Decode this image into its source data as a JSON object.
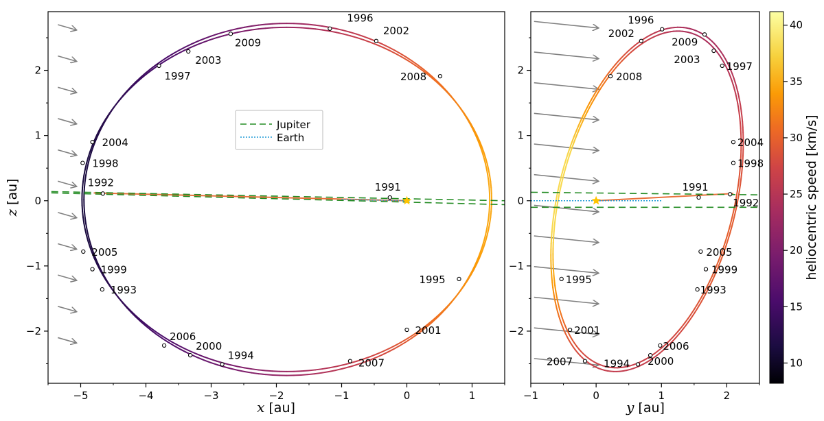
{
  "chart_data": {
    "type": "line",
    "description_title": "",
    "colorbar": {
      "label": "heliocentric speed [km/s]",
      "range": [
        8.2,
        41.2
      ],
      "ticks": [
        10,
        15,
        20,
        25,
        30,
        35,
        40
      ],
      "colormap": "inferno"
    },
    "legend": {
      "position": "center-top",
      "entries": [
        {
          "name": "Jupiter",
          "style": "dashed",
          "color": "#228b22"
        },
        {
          "name": "Earth",
          "style": "dotted",
          "color": "#1f9ad6"
        }
      ]
    },
    "panels": [
      {
        "name": "xz",
        "xlabel_var": "x",
        "xlabel_unit": " [au]",
        "ylabel_var": "z",
        "ylabel_unit": " [au]",
        "xlim": [
          -5.5,
          1.5
        ],
        "ylim": [
          -2.8,
          2.9
        ],
        "xticks": [
          -5,
          -4,
          -3,
          -2,
          -1,
          0,
          1
        ],
        "yticks": [
          -2,
          -1,
          0,
          1,
          2
        ],
        "xtick_labels": [
          "−5",
          "−4",
          "−3",
          "−2",
          "−1",
          "0",
          "1"
        ],
        "ytick_labels": [
          "−2",
          "−1",
          "0",
          "1",
          "2"
        ],
        "flow_arrows": [
          {
            "x": -5.35,
            "y": 2.7,
            "dx": 0.28,
            "dy": -0.08
          },
          {
            "x": -5.35,
            "y": 2.22,
            "dx": 0.28,
            "dy": -0.08
          },
          {
            "x": -5.35,
            "y": 1.74,
            "dx": 0.28,
            "dy": -0.08
          },
          {
            "x": -5.35,
            "y": 1.26,
            "dx": 0.28,
            "dy": -0.08
          },
          {
            "x": -5.35,
            "y": 0.78,
            "dx": 0.28,
            "dy": -0.08
          },
          {
            "x": -5.35,
            "y": 0.3,
            "dx": 0.28,
            "dy": -0.08
          },
          {
            "x": -5.35,
            "y": -0.18,
            "dx": 0.28,
            "dy": -0.08
          },
          {
            "x": -5.35,
            "y": -0.66,
            "dx": 0.28,
            "dy": -0.08
          },
          {
            "x": -5.35,
            "y": -1.14,
            "dx": 0.28,
            "dy": -0.08
          },
          {
            "x": -5.35,
            "y": -1.62,
            "dx": 0.28,
            "dy": -0.08
          },
          {
            "x": -5.35,
            "y": -2.1,
            "dx": 0.28,
            "dy": -0.08
          }
        ],
        "orbit_ellipses": [
          {
            "center": [
              -1.84,
              0.02
            ],
            "a": 3.14,
            "b": 2.64
          },
          {
            "center": [
              -1.84,
              0.02
            ],
            "a": 3.11,
            "b": 2.7
          }
        ],
        "jupiter_lines": [
          {
            "x": [
              -5.45,
              1.5
            ],
            "y": [
              0.14,
              0.0
            ]
          },
          {
            "x": [
              -5.45,
              1.5
            ],
            "y": [
              0.12,
              -0.06
            ]
          }
        ],
        "earth_line": {
          "x": [
            -1.0,
            0.0
          ],
          "y": [
            0.02,
            0.0
          ]
        },
        "flyby_line": {
          "x": [
            -4.8,
            0.0
          ],
          "y": [
            0.12,
            0.0
          ]
        },
        "sun": [
          0,
          0
        ],
        "points": [
          {
            "label": "1996",
            "x": -1.18,
            "y": 2.64,
            "lx": 25,
            "ly": -10
          },
          {
            "label": "2002",
            "x": -0.47,
            "y": 2.45,
            "lx": 10,
            "ly": -10
          },
          {
            "label": "2009",
            "x": -2.7,
            "y": 2.56,
            "lx": 6,
            "ly": 18
          },
          {
            "label": "2003",
            "x": -3.35,
            "y": 2.29,
            "lx": 10,
            "ly": 18
          },
          {
            "label": "2008",
            "x": 0.51,
            "y": 1.91,
            "lx": -58,
            "ly": 6
          },
          {
            "label": "1997",
            "x": -3.8,
            "y": 2.07,
            "lx": 8,
            "ly": 20
          },
          {
            "label": "2004",
            "x": -4.82,
            "y": 0.9,
            "lx": 14,
            "ly": 6
          },
          {
            "label": "1998",
            "x": -4.97,
            "y": 0.58,
            "lx": 14,
            "ly": 6
          },
          {
            "label": "1992",
            "x": -4.66,
            "y": 0.11,
            "lx": -22,
            "ly": -11
          },
          {
            "label": "1991",
            "x": -0.26,
            "y": 0.05,
            "lx": -22,
            "ly": -10
          },
          {
            "label": "2005",
            "x": -4.96,
            "y": -0.78,
            "lx": 12,
            "ly": 6
          },
          {
            "label": "1999",
            "x": -4.82,
            "y": -1.05,
            "lx": 12,
            "ly": 6
          },
          {
            "label": "1993",
            "x": -4.67,
            "y": -1.36,
            "lx": 12,
            "ly": 6
          },
          {
            "label": "1995",
            "x": 0.8,
            "y": -1.2,
            "lx": -58,
            "ly": 6
          },
          {
            "label": "2001",
            "x": 0.0,
            "y": -1.98,
            "lx": 12,
            "ly": 6
          },
          {
            "label": "2006",
            "x": -3.72,
            "y": -2.22,
            "lx": 8,
            "ly": -8
          },
          {
            "label": "2000",
            "x": -3.32,
            "y": -2.37,
            "lx": 8,
            "ly": -8
          },
          {
            "label": "1994",
            "x": -2.83,
            "y": -2.51,
            "lx": 8,
            "ly": -8
          },
          {
            "label": "2007",
            "x": -0.87,
            "y": -2.46,
            "lx": 12,
            "ly": 8
          }
        ]
      },
      {
        "name": "yz",
        "xlabel_var": "y",
        "xlabel_unit": " [au]",
        "ylabel_var": "",
        "ylabel_unit": "",
        "xlim": [
          -1.0,
          2.5
        ],
        "ylim": [
          -2.8,
          2.9
        ],
        "xticks": [
          -1,
          0,
          1,
          2
        ],
        "yticks": [
          -2,
          -1,
          0,
          1,
          2
        ],
        "xtick_labels": [
          "−1",
          "0",
          "1",
          "2"
        ],
        "ytick_labels": [
          "−2",
          "−1",
          "0",
          "1",
          "2"
        ],
        "flow_arrows": [
          {
            "x": -0.95,
            "y": 2.75,
            "dx": 0.98,
            "dy": -0.1
          },
          {
            "x": -0.95,
            "y": 2.28,
            "dx": 0.98,
            "dy": -0.1
          },
          {
            "x": -0.95,
            "y": 1.81,
            "dx": 0.98,
            "dy": -0.1
          },
          {
            "x": -0.95,
            "y": 1.34,
            "dx": 0.98,
            "dy": -0.1
          },
          {
            "x": -0.95,
            "y": 0.87,
            "dx": 0.98,
            "dy": -0.1
          },
          {
            "x": -0.95,
            "y": 0.4,
            "dx": 0.98,
            "dy": -0.1
          },
          {
            "x": -0.95,
            "y": -0.07,
            "dx": 0.98,
            "dy": -0.1
          },
          {
            "x": -0.95,
            "y": -0.54,
            "dx": 0.98,
            "dy": -0.1
          },
          {
            "x": -0.95,
            "y": -1.01,
            "dx": 0.98,
            "dy": -0.1
          },
          {
            "x": -0.95,
            "y": -1.48,
            "dx": 0.98,
            "dy": -0.1
          },
          {
            "x": -0.95,
            "y": -1.95,
            "dx": 0.98,
            "dy": -0.1
          },
          {
            "x": -0.95,
            "y": -2.42,
            "dx": 0.98,
            "dy": -0.1
          }
        ],
        "orbit_ellipses": [
          {
            "center": [
              0.78,
              0.02
            ],
            "a": 1.33,
            "b": 2.64,
            "rot": -14
          },
          {
            "center": [
              0.78,
              0.02
            ],
            "a": 1.36,
            "b": 2.7,
            "rot": -14
          }
        ],
        "jupiter_lines": [
          {
            "x": [
              -1.0,
              2.5
            ],
            "y": [
              0.13,
              0.09
            ]
          },
          {
            "x": [
              -1.0,
              2.5
            ],
            "y": [
              -0.1,
              -0.1
            ]
          }
        ],
        "earth_line": {
          "x": [
            -1.0,
            1.0
          ],
          "y": [
            0.0,
            0.0
          ]
        },
        "flyby_line": {
          "x": [
            0.0,
            2.1
          ],
          "y": [
            0.0,
            0.11
          ]
        },
        "sun": [
          0,
          0
        ],
        "points": [
          {
            "label": "1996",
            "x": 1.01,
            "y": 2.63,
            "lx": -50,
            "ly": -8
          },
          {
            "label": "2002",
            "x": 0.69,
            "y": 2.45,
            "lx": -48,
            "ly": -6
          },
          {
            "label": "2009",
            "x": 1.66,
            "y": 2.55,
            "lx": -48,
            "ly": 16
          },
          {
            "label": "2003",
            "x": 1.8,
            "y": 2.3,
            "lx": -58,
            "ly": 18
          },
          {
            "label": "1997",
            "x": 1.93,
            "y": 2.07,
            "lx": 6,
            "ly": 6
          },
          {
            "label": "2008",
            "x": 0.22,
            "y": 1.91,
            "lx": 8,
            "ly": 6
          },
          {
            "label": "2004",
            "x": 2.1,
            "y": 0.9,
            "lx": 6,
            "ly": 6
          },
          {
            "label": "1998",
            "x": 2.1,
            "y": 0.58,
            "lx": 6,
            "ly": 6
          },
          {
            "label": "1991",
            "x": 1.57,
            "y": 0.05,
            "lx": -24,
            "ly": -10
          },
          {
            "label": "1992",
            "x": 2.05,
            "y": 0.1,
            "lx": 4,
            "ly": 18
          },
          {
            "label": "2005",
            "x": 1.6,
            "y": -0.78,
            "lx": 8,
            "ly": 6
          },
          {
            "label": "1999",
            "x": 1.68,
            "y": -1.05,
            "lx": 8,
            "ly": 6
          },
          {
            "label": "1993",
            "x": 1.55,
            "y": -1.36,
            "lx": 4,
            "ly": 6
          },
          {
            "label": "1995",
            "x": -0.53,
            "y": -1.2,
            "lx": 6,
            "ly": 6
          },
          {
            "label": "2001",
            "x": -0.4,
            "y": -1.98,
            "lx": 6,
            "ly": 6
          },
          {
            "label": "2006",
            "x": 0.98,
            "y": -2.22,
            "lx": 4,
            "ly": 6
          },
          {
            "label": "2000",
            "x": 0.83,
            "y": -2.37,
            "lx": -4,
            "ly": 14
          },
          {
            "label": "1994",
            "x": 0.64,
            "y": -2.51,
            "lx": -50,
            "ly": 4
          },
          {
            "label": "2007",
            "x": -0.17,
            "y": -2.46,
            "lx": -56,
            "ly": 6
          }
        ]
      }
    ]
  }
}
